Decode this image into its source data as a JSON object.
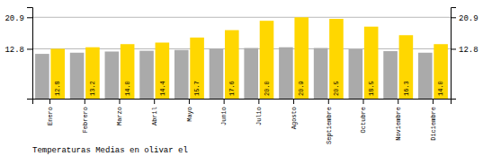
{
  "chart_data": {
    "type": "bar",
    "title": "Temperaturas Medias en olivar el",
    "categories": [
      "Enero",
      "Febrero",
      "Marzo",
      "Abril",
      "Mayo",
      "Junio",
      "Julio",
      "Agosto",
      "Septiembre",
      "Octubre",
      "Noviembre",
      "Diciembre"
    ],
    "series": [
      {
        "color": "#AAAAAA",
        "values": [
          11.5,
          11.8,
          12.1,
          12.3,
          12.5,
          12.8,
          13.0,
          13.2,
          13.0,
          12.7,
          12.2,
          11.8
        ]
      },
      {
        "color": "#FFD700",
        "values": [
          12.8,
          13.2,
          14.0,
          14.4,
          15.7,
          17.6,
          20.0,
          20.9,
          20.5,
          18.5,
          16.3,
          14.0
        ],
        "value_labels": [
          "12.8",
          "13.2",
          "14.0",
          "14.4",
          "15.7",
          "17.6",
          "20.0",
          "20.9",
          "20.5",
          "18.5",
          "16.3",
          "14.0"
        ],
        "data_labels": true
      }
    ],
    "ylim": [
      0.0,
      23.5
    ],
    "yticks": [
      12.8,
      20.9
    ],
    "y2lim": [
      0.0,
      23.5
    ],
    "y2ticks": [
      12.8,
      20.9
    ],
    "grid": true
  }
}
